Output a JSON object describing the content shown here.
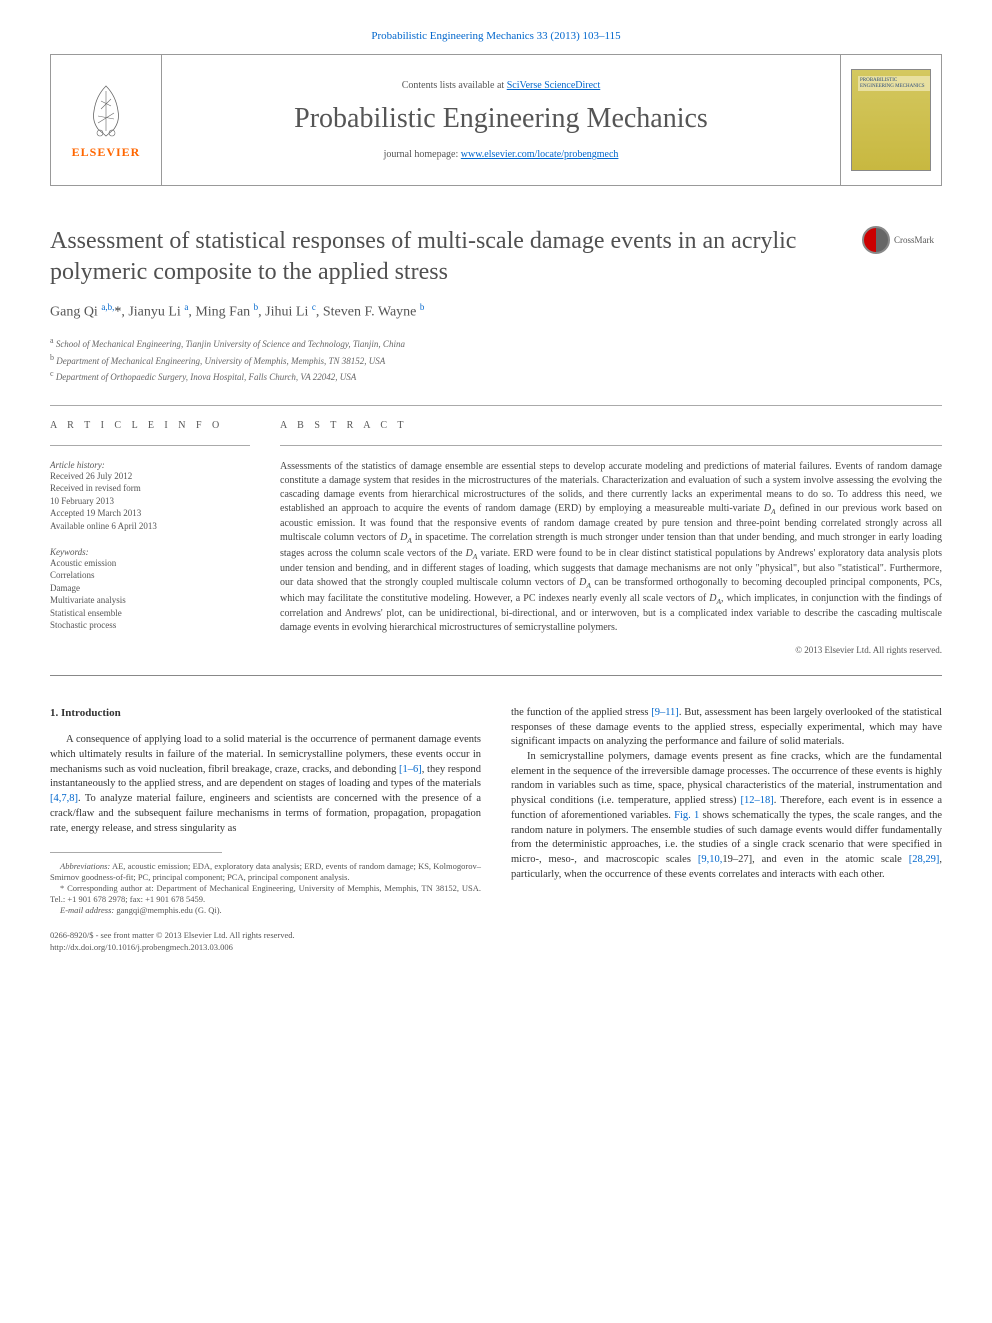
{
  "links": {
    "top_journal_link": "Probabilistic Engineering Mechanics 33 (2013) 103–115",
    "contents_prefix": "Contents lists available at ",
    "contents_link": "SciVerse ScienceDirect",
    "homepage_prefix": "journal homepage: ",
    "homepage_link": "www.elsevier.com/locate/probengmech"
  },
  "publisher": {
    "name": "ELSEVIER",
    "color": "#ff6600"
  },
  "journal": {
    "title": "Probabilistic Engineering Mechanics",
    "cover_label": "PROBABILISTIC ENGINEERING MECHANICS"
  },
  "crossmark": "CrossMark",
  "article": {
    "title": "Assessment of statistical responses of multi-scale damage events in an acrylic polymeric composite to the applied stress",
    "authors_html": "Gang Qi <sup>a,b,</sup><span class='author-star'>*</span>, Jianyu Li <sup>a</sup>, Ming Fan <sup>b</sup>, Jihui Li <sup>c</sup>, Steven F. Wayne <sup>b</sup>",
    "affiliations": [
      {
        "sup": "a",
        "text": "School of Mechanical Engineering, Tianjin University of Science and Technology, Tianjin, China"
      },
      {
        "sup": "b",
        "text": "Department of Mechanical Engineering, University of Memphis, Memphis, TN 38152, USA"
      },
      {
        "sup": "c",
        "text": "Department of Orthopaedic Surgery, Inova Hospital, Falls Church, VA 22042, USA"
      }
    ]
  },
  "info": {
    "head": "A R T I C L E  I N F O",
    "history_label": "Article history:",
    "history": [
      "Received 26 July 2012",
      "Received in revised form",
      "10 February 2013",
      "Accepted 19 March 2013",
      "Available online 6 April 2013"
    ],
    "keywords_label": "Keywords:",
    "keywords": [
      "Acoustic emission",
      "Correlations",
      "Damage",
      "Multivariate analysis",
      "Statistical ensemble",
      "Stochastic process"
    ]
  },
  "abstract": {
    "head": "A B S T R A C T",
    "text": "Assessments of the statistics of damage ensemble are essential steps to develop accurate modeling and predictions of material failures. Events of random damage constitute a damage system that resides in the microstructures of the materials. Characterization and evaluation of such a system involve assessing the evolving the cascading damage events from hierarchical microstructures of the solids, and there currently lacks an experimental means to do so. To address this need, we established an approach to acquire the events of random damage (ERD) by employing a measureable multi-variate D_A defined in our previous work based on acoustic emission. It was found that the responsive events of random damage created by pure tension and three-point bending correlated strongly across all multiscale column vectors of D_A in spacetime. The correlation strength is much stronger under tension than that under bending, and much stronger in early loading stages across the column scale vectors of the D_A variate. ERD were found to be in clear distinct statistical populations by Andrews' exploratory data analysis plots under tension and bending, and in different stages of loading, which suggests that damage mechanisms are not only \"physical\", but also \"statistical\". Furthermore, our data showed that the strongly coupled multiscale column vectors of D_A can be transformed orthogonally to becoming decoupled principal components, PCs, which may facilitate the constitutive modeling. However, a PC indexes nearly evenly all scale vectors of D_A, which implicates, in conjunction with the findings of correlation and Andrews' plot, can be unidirectional, bi-directional, and or interwoven, but is a complicated index variable to describe the cascading multiscale damage events in evolving hierarchical microstructures of semicrystalline polymers.",
    "copyright": "© 2013 Elsevier Ltd. All rights reserved."
  },
  "body": {
    "section1_head": "1. Introduction",
    "col1_p1": "A consequence of applying load to a solid material is the occurrence of permanent damage events which ultimately results in failure of the material. In semicrystalline polymers, these events occur in mechanisms such as void nucleation, fibril breakage, craze, cracks, and debonding [1–6], they respond instantaneously to the applied stress, and are dependent on stages of loading and types of the materials [4,7,8]. To analyze material failure, engineers and scientists are concerned with the presence of a crack/flaw and the subsequent failure mechanisms in terms of formation, propagation, propagation rate, energy release, and stress singularity as",
    "col2_p1": "the function of the applied stress [9–11]. But, assessment has been largely overlooked of the statistical responses of these damage events to the applied stress, especially experimental, which may have significant impacts on analyzing the performance and failure of solid materials.",
    "col2_p2": "In semicrystalline polymers, damage events present as fine cracks, which are the fundamental element in the sequence of the irreversible damage processes. The occurrence of these events is highly random in variables such as time, space, physical characteristics of the material, instrumentation and physical conditions (i.e. temperature, applied stress) [12–18]. Therefore, each event is in essence a function of aforementioned variables. Fig. 1 shows schematically the types, the scale ranges, and the random nature in polymers. The ensemble studies of such damage events would differ fundamentally from the deterministic approaches, i.e. the studies of a single crack scenario that were specified in micro-, meso-, and macroscopic scales [9,10,19–27], and even in the atomic scale [28,29], particularly, when the occurrence of these events correlates and interacts with each other."
  },
  "footnotes": {
    "abbrev_label": "Abbreviations:",
    "abbrev_text": " AE, acoustic emission; EDA, exploratory data analysis; ERD, events of random damage; KS, Kolmogorov–Smirnov goodness-of-fit; PC, principal component; PCA, principal component analysis.",
    "corr_label": "* Corresponding author at: ",
    "corr_text": "Department of Mechanical Engineering, University of Memphis, Memphis, TN 38152, USA. Tel.: +1 901 678 2978; fax: +1 901 678 5459.",
    "email_label": "E-mail address:",
    "email_text": " gangqi@memphis.edu (G. Qi)."
  },
  "bottom": {
    "issn": "0266-8920/$ - see front matter © 2013 Elsevier Ltd. All rights reserved.",
    "doi": "http://dx.doi.org/10.1016/j.probengmech.2013.03.006"
  },
  "refs": {
    "r1": "[1–6]",
    "r2": "[4,7,8]",
    "r3": "[9–11]",
    "r4": "[12–18]",
    "fig1": "Fig. 1",
    "r5": "[9,10,",
    "r5b": "19–27]",
    "r6": "[28,29]"
  },
  "colors": {
    "link": "#0066cc",
    "elsevier": "#ff6600",
    "text": "#333333",
    "heading": "#505050",
    "cover_bg1": "#d4c860",
    "cover_bg2": "#c8b840"
  }
}
